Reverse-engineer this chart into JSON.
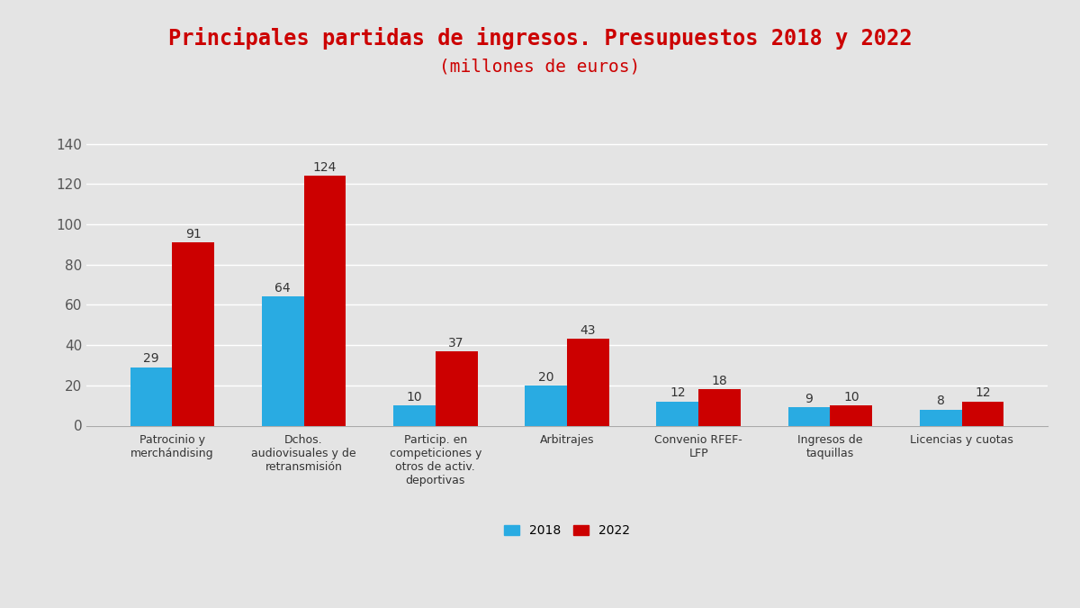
{
  "title_line1": "Principales partidas de ingresos. Presupuestos 2018 y 2022",
  "title_line2": "(millones de euros)",
  "title_color": "#cc0000",
  "categories": [
    "Patrocinio y\nmerchándising",
    "Dchos.\naudiovisuales y de\nretransmisión",
    "Particip. en\ncompeticiones y\notros de activ.\ndeportivas",
    "Arbitrajes",
    "Convenio RFEF-\nLFP",
    "Ingresos de\ntaquillas",
    "Licencias y cuotas"
  ],
  "values_2018": [
    29,
    64,
    10,
    20,
    12,
    9,
    8
  ],
  "values_2022": [
    91,
    124,
    37,
    43,
    18,
    10,
    12
  ],
  "color_2018": "#29abe2",
  "color_2022": "#cc0000",
  "ylim": [
    0,
    145
  ],
  "yticks": [
    0,
    20,
    40,
    60,
    80,
    100,
    120,
    140
  ],
  "background_color": "#e4e4e4",
  "plot_bg_color": "#e4e4e4",
  "legend_label_2018": "2018",
  "legend_label_2022": "2022",
  "bar_width": 0.32,
  "label_fontsize": 10,
  "title_fontsize1": 17,
  "title_fontsize2": 14,
  "tick_label_fontsize": 9,
  "axis_tick_fontsize": 11
}
